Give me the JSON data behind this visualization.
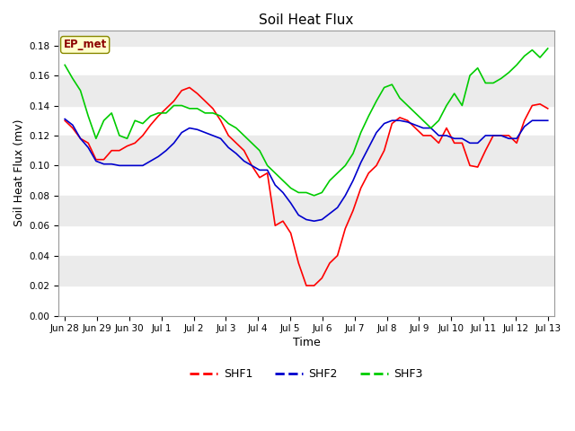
{
  "title": "Soil Heat Flux",
  "xlabel": "Time",
  "ylabel": "Soil Heat Flux (mv)",
  "ylim": [
    0.0,
    0.19
  ],
  "xlim": [
    0,
    15
  ],
  "xtick_labels": [
    "Jun 28",
    "Jun 29",
    "Jun 30",
    "Jul 1",
    "Jul 2",
    "Jul 3",
    "Jul 4",
    "Jul 5",
    "Jul 6",
    "Jul 7",
    "Jul 8",
    "Jul 9",
    "Jul 10",
    "Jul 11",
    "Jul 12",
    "Jul 13"
  ],
  "background_color": "#ffffff",
  "plot_bg_color": "#ffffff",
  "band_light": "#ebebeb",
  "ep_met_label": "EP_met",
  "ep_met_fgcolor": "#8b0000",
  "ep_met_bgcolor": "#ffffcc",
  "legend_entries": [
    "SHF1",
    "SHF2",
    "SHF3"
  ],
  "line_colors": [
    "#ff0000",
    "#0000cd",
    "#00cc00"
  ],
  "title_fontsize": 11,
  "axis_fontsize": 8,
  "label_fontsize": 9,
  "SHF1": [
    0.13,
    0.125,
    0.118,
    0.115,
    0.104,
    0.104,
    0.11,
    0.11,
    0.113,
    0.115,
    0.12,
    0.127,
    0.133,
    0.138,
    0.143,
    0.15,
    0.152,
    0.148,
    0.143,
    0.138,
    0.13,
    0.12,
    0.115,
    0.11,
    0.1,
    0.092,
    0.095,
    0.06,
    0.063,
    0.055,
    0.035,
    0.02,
    0.02,
    0.025,
    0.035,
    0.04,
    0.058,
    0.07,
    0.085,
    0.095,
    0.1,
    0.11,
    0.128,
    0.132,
    0.13,
    0.125,
    0.12,
    0.12,
    0.115,
    0.125,
    0.115,
    0.115,
    0.1,
    0.099,
    0.11,
    0.12,
    0.12,
    0.12,
    0.115,
    0.13,
    0.14,
    0.141,
    0.138
  ],
  "SHF2": [
    0.131,
    0.127,
    0.118,
    0.112,
    0.103,
    0.101,
    0.101,
    0.1,
    0.1,
    0.1,
    0.1,
    0.103,
    0.106,
    0.11,
    0.115,
    0.122,
    0.125,
    0.124,
    0.122,
    0.12,
    0.118,
    0.112,
    0.108,
    0.103,
    0.1,
    0.097,
    0.097,
    0.087,
    0.082,
    0.075,
    0.067,
    0.064,
    0.063,
    0.064,
    0.068,
    0.072,
    0.08,
    0.09,
    0.102,
    0.112,
    0.122,
    0.128,
    0.13,
    0.13,
    0.129,
    0.127,
    0.125,
    0.125,
    0.12,
    0.12,
    0.118,
    0.118,
    0.115,
    0.115,
    0.12,
    0.12,
    0.12,
    0.118,
    0.118,
    0.126,
    0.13,
    0.13,
    0.13
  ],
  "SHF3": [
    0.167,
    0.158,
    0.15,
    0.133,
    0.118,
    0.13,
    0.135,
    0.12,
    0.118,
    0.13,
    0.128,
    0.133,
    0.135,
    0.135,
    0.14,
    0.14,
    0.138,
    0.138,
    0.135,
    0.135,
    0.133,
    0.128,
    0.125,
    0.12,
    0.115,
    0.11,
    0.1,
    0.095,
    0.09,
    0.085,
    0.082,
    0.082,
    0.08,
    0.082,
    0.09,
    0.095,
    0.1,
    0.108,
    0.122,
    0.133,
    0.143,
    0.152,
    0.154,
    0.145,
    0.14,
    0.135,
    0.13,
    0.125,
    0.13,
    0.14,
    0.148,
    0.14,
    0.16,
    0.165,
    0.155,
    0.155,
    0.158,
    0.162,
    0.167,
    0.173,
    0.177,
    0.172,
    0.178
  ]
}
